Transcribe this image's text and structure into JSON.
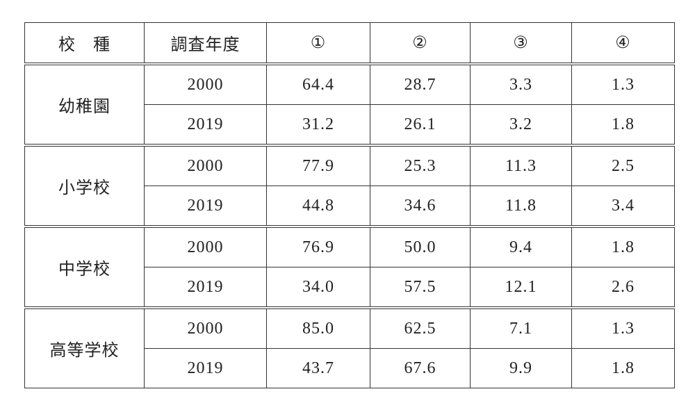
{
  "table": {
    "header": [
      "校　種",
      "調査年度",
      "①",
      "②",
      "③",
      "④"
    ],
    "groups": [
      {
        "school": "幼稚園",
        "rows": [
          {
            "year": "2000",
            "values": [
              "64.4",
              "28.7",
              "3.3",
              "1.3"
            ]
          },
          {
            "year": "2019",
            "values": [
              "31.2",
              "26.1",
              "3.2",
              "1.8"
            ]
          }
        ]
      },
      {
        "school": "小学校",
        "rows": [
          {
            "year": "2000",
            "values": [
              "77.9",
              "25.3",
              "11.3",
              "2.5"
            ]
          },
          {
            "year": "2019",
            "values": [
              "44.8",
              "34.6",
              "11.8",
              "3.4"
            ]
          }
        ]
      },
      {
        "school": "中学校",
        "rows": [
          {
            "year": "2000",
            "values": [
              "76.9",
              "50.0",
              "9.4",
              "1.8"
            ]
          },
          {
            "year": "2019",
            "values": [
              "34.0",
              "57.5",
              "12.1",
              "2.6"
            ]
          }
        ]
      },
      {
        "school": "高等学校",
        "rows": [
          {
            "year": "2000",
            "values": [
              "85.0",
              "62.5",
              "7.1",
              "1.3"
            ]
          },
          {
            "year": "2019",
            "values": [
              "43.7",
              "67.6",
              "9.9",
              "1.8"
            ]
          }
        ]
      }
    ]
  }
}
